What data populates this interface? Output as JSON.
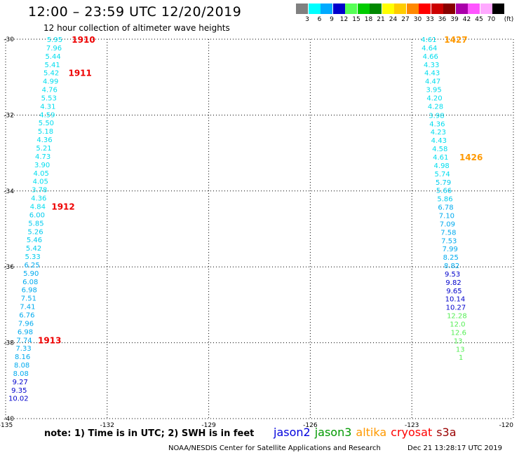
{
  "header": {
    "title": "12:00 – 23:59 UTC 12/20/2019",
    "subtitle": "12 hour collection of altimeter wave heights"
  },
  "legend": {
    "unit": "(ft)",
    "bins": [
      {
        "label": "3",
        "color": "#808080"
      },
      {
        "label": "6",
        "color": "#00ffff"
      },
      {
        "label": "9",
        "color": "#00aaff"
      },
      {
        "label": "12",
        "color": "#0000cc"
      },
      {
        "label": "15",
        "color": "#55ff55"
      },
      {
        "label": "18",
        "color": "#00cc00"
      },
      {
        "label": "21",
        "color": "#008800"
      },
      {
        "label": "24",
        "color": "#ffff00"
      },
      {
        "label": "27",
        "color": "#ffcc00"
      },
      {
        "label": "30",
        "color": "#ff8800"
      },
      {
        "label": "33",
        "color": "#ff0000"
      },
      {
        "label": "36",
        "color": "#cc0000"
      },
      {
        "label": "39",
        "color": "#880000"
      },
      {
        "label": "42",
        "color": "#aa00aa"
      },
      {
        "label": "45",
        "color": "#ff55ff"
      },
      {
        "label": "70",
        "color": "#ffaaff"
      },
      {
        "label": "",
        "color": "#000000"
      }
    ]
  },
  "map": {
    "lon_range": [
      -135,
      -120
    ],
    "lat_range": [
      -40,
      -30
    ],
    "lon_ticks": [
      -135,
      -132,
      -129,
      -126,
      -123,
      -120
    ],
    "lat_ticks": [
      -30,
      -32,
      -34,
      -36,
      -38,
      -40
    ],
    "lon_tick_labels": [
      "-135",
      "-132",
      "-129",
      "-126",
      "-123",
      "-120"
    ],
    "lat_tick_labels": [
      "-30",
      "-32",
      "-34",
      "-36",
      "-38",
      "-40"
    ],
    "grid": "dotted",
    "tracks": [
      {
        "color_scheme": "by-height",
        "points": [
          {
            "lon": -133.55,
            "lat": -30.0,
            "v": "5.95",
            "c": "#00ddee"
          },
          {
            "lon": -133.57,
            "lat": -30.22,
            "v": "7.96",
            "c": "#00ddee"
          },
          {
            "lon": -133.6,
            "lat": -30.44,
            "v": "5.44",
            "c": "#00ddee"
          },
          {
            "lon": -133.62,
            "lat": -30.66,
            "v": "5.41",
            "c": "#00ddee"
          },
          {
            "lon": -133.65,
            "lat": -30.88,
            "v": "5.42",
            "c": "#00ddee"
          },
          {
            "lon": -133.67,
            "lat": -31.1,
            "v": "4.99",
            "c": "#00ddee"
          },
          {
            "lon": -133.7,
            "lat": -31.32,
            "v": "4.76",
            "c": "#00ddee"
          },
          {
            "lon": -133.72,
            "lat": -31.54,
            "v": "5.53",
            "c": "#00ddee"
          },
          {
            "lon": -133.75,
            "lat": -31.76,
            "v": "4.31",
            "c": "#00ddee"
          },
          {
            "lon": -133.77,
            "lat": -31.98,
            "v": "4.59",
            "c": "#00ddee"
          },
          {
            "lon": -133.8,
            "lat": -32.2,
            "v": "5.50",
            "c": "#00ddee"
          },
          {
            "lon": -133.82,
            "lat": -32.42,
            "v": "5.18",
            "c": "#00ddee"
          },
          {
            "lon": -133.85,
            "lat": -32.64,
            "v": "4.36",
            "c": "#00ddee"
          },
          {
            "lon": -133.87,
            "lat": -32.86,
            "v": "5.21",
            "c": "#00ddee"
          },
          {
            "lon": -133.9,
            "lat": -33.08,
            "v": "4.73",
            "c": "#00ddee"
          },
          {
            "lon": -133.92,
            "lat": -33.3,
            "v": "3.90",
            "c": "#00ddee"
          },
          {
            "lon": -133.95,
            "lat": -33.52,
            "v": "4.05",
            "c": "#00ddee"
          },
          {
            "lon": -133.97,
            "lat": -33.74,
            "v": "4.05",
            "c": "#00ddee"
          },
          {
            "lon": -134.0,
            "lat": -33.96,
            "v": "3.78",
            "c": "#00ddee"
          },
          {
            "lon": -134.02,
            "lat": -34.18,
            "v": "4.36",
            "c": "#00ddee"
          },
          {
            "lon": -134.05,
            "lat": -34.4,
            "v": "4.84",
            "c": "#00ddee"
          },
          {
            "lon": -134.07,
            "lat": -34.62,
            "v": "6.00",
            "c": "#00ccee"
          },
          {
            "lon": -134.1,
            "lat": -34.84,
            "v": "5.85",
            "c": "#00ccee"
          },
          {
            "lon": -134.12,
            "lat": -35.06,
            "v": "5.26",
            "c": "#00ccee"
          },
          {
            "lon": -134.15,
            "lat": -35.28,
            "v": "5.46",
            "c": "#00ccee"
          },
          {
            "lon": -134.17,
            "lat": -35.5,
            "v": "5.42",
            "c": "#00ccee"
          },
          {
            "lon": -134.2,
            "lat": -35.72,
            "v": "5.33",
            "c": "#00ccee"
          },
          {
            "lon": -134.22,
            "lat": -35.94,
            "v": "6.25",
            "c": "#00aaee"
          },
          {
            "lon": -134.25,
            "lat": -36.16,
            "v": "5.90",
            "c": "#00aaee"
          },
          {
            "lon": -134.27,
            "lat": -36.38,
            "v": "6.08",
            "c": "#00aaee"
          },
          {
            "lon": -134.3,
            "lat": -36.6,
            "v": "6.98",
            "c": "#00aaee"
          },
          {
            "lon": -134.32,
            "lat": -36.82,
            "v": "7.51",
            "c": "#00aaee"
          },
          {
            "lon": -134.35,
            "lat": -37.04,
            "v": "7.41",
            "c": "#00aaee"
          },
          {
            "lon": -134.37,
            "lat": -37.26,
            "v": "6.76",
            "c": "#00aaee"
          },
          {
            "lon": -134.4,
            "lat": -37.48,
            "v": "7.96",
            "c": "#00aaee"
          },
          {
            "lon": -134.42,
            "lat": -37.7,
            "v": "6.98",
            "c": "#00aaee"
          },
          {
            "lon": -134.45,
            "lat": -37.92,
            "v": "7.74",
            "c": "#00aaee"
          },
          {
            "lon": -134.47,
            "lat": -38.14,
            "v": "7.33",
            "c": "#00aaee"
          },
          {
            "lon": -134.5,
            "lat": -38.36,
            "v": "8.16",
            "c": "#00aaee"
          },
          {
            "lon": -134.52,
            "lat": -38.58,
            "v": "8.08",
            "c": "#00aaee"
          },
          {
            "lon": -134.55,
            "lat": -38.8,
            "v": "8.08",
            "c": "#00aaee"
          },
          {
            "lon": -134.57,
            "lat": -39.02,
            "v": "9.27",
            "c": "#0000cc"
          },
          {
            "lon": -134.6,
            "lat": -39.24,
            "v": "9.35",
            "c": "#0000cc"
          },
          {
            "lon": -134.62,
            "lat": -39.46,
            "v": "10.02",
            "c": "#0000cc"
          }
        ]
      },
      {
        "color_scheme": "by-height",
        "points": [
          {
            "lon": -122.5,
            "lat": -30.0,
            "v": "4.61",
            "c": "#00ddee"
          },
          {
            "lon": -122.48,
            "lat": -30.22,
            "v": "4.64",
            "c": "#00ddee"
          },
          {
            "lon": -122.45,
            "lat": -30.44,
            "v": "4.66",
            "c": "#00ddee"
          },
          {
            "lon": -122.42,
            "lat": -30.66,
            "v": "4.33",
            "c": "#00ddee"
          },
          {
            "lon": -122.4,
            "lat": -30.88,
            "v": "4.43",
            "c": "#00ddee"
          },
          {
            "lon": -122.38,
            "lat": -31.1,
            "v": "4.47",
            "c": "#00ddee"
          },
          {
            "lon": -122.35,
            "lat": -31.32,
            "v": "3.95",
            "c": "#00ddee"
          },
          {
            "lon": -122.33,
            "lat": -31.54,
            "v": "4.20",
            "c": "#00ddee"
          },
          {
            "lon": -122.3,
            "lat": -31.76,
            "v": "4.28",
            "c": "#00ddee"
          },
          {
            "lon": -122.27,
            "lat": -32.0,
            "v": "3.98",
            "c": "#00ddee"
          },
          {
            "lon": -122.25,
            "lat": -32.22,
            "v": "4.36",
            "c": "#00ddee"
          },
          {
            "lon": -122.22,
            "lat": -32.44,
            "v": "4.23",
            "c": "#00ddee"
          },
          {
            "lon": -122.2,
            "lat": -32.66,
            "v": "4.43",
            "c": "#00ddee"
          },
          {
            "lon": -122.17,
            "lat": -32.88,
            "v": "4.58",
            "c": "#00ddee"
          },
          {
            "lon": -122.15,
            "lat": -33.1,
            "v": "4.61",
            "c": "#00ddee"
          },
          {
            "lon": -122.12,
            "lat": -33.32,
            "v": "4.98",
            "c": "#00ddee"
          },
          {
            "lon": -122.1,
            "lat": -33.54,
            "v": "5.74",
            "c": "#00ddee"
          },
          {
            "lon": -122.07,
            "lat": -33.76,
            "v": "5.79",
            "c": "#00ccee"
          },
          {
            "lon": -122.05,
            "lat": -33.98,
            "v": "5.66",
            "c": "#00ccee"
          },
          {
            "lon": -122.02,
            "lat": -34.2,
            "v": "5.86",
            "c": "#00ccee"
          },
          {
            "lon": -122.0,
            "lat": -34.42,
            "v": "6.78",
            "c": "#00aaee"
          },
          {
            "lon": -121.97,
            "lat": -34.64,
            "v": "7.10",
            "c": "#00aaee"
          },
          {
            "lon": -121.95,
            "lat": -34.86,
            "v": "7.09",
            "c": "#00aaee"
          },
          {
            "lon": -121.92,
            "lat": -35.08,
            "v": "7.58",
            "c": "#00aaee"
          },
          {
            "lon": -121.9,
            "lat": -35.3,
            "v": "7.53",
            "c": "#00aaee"
          },
          {
            "lon": -121.87,
            "lat": -35.52,
            "v": "7.99",
            "c": "#00aaee"
          },
          {
            "lon": -121.85,
            "lat": -35.74,
            "v": "8.25",
            "c": "#00aaee"
          },
          {
            "lon": -121.82,
            "lat": -35.96,
            "v": "8.82",
            "c": "#00aaee"
          },
          {
            "lon": -121.8,
            "lat": -36.18,
            "v": "9.53",
            "c": "#0000cc"
          },
          {
            "lon": -121.77,
            "lat": -36.4,
            "v": "9.82",
            "c": "#0000cc"
          },
          {
            "lon": -121.75,
            "lat": -36.62,
            "v": "9.65",
            "c": "#0000cc"
          },
          {
            "lon": -121.72,
            "lat": -36.84,
            "v": "10.14",
            "c": "#0000cc"
          },
          {
            "lon": -121.7,
            "lat": -37.06,
            "v": "10.27",
            "c": "#0000cc"
          },
          {
            "lon": -121.67,
            "lat": -37.28,
            "v": "12.28",
            "c": "#55ee55"
          },
          {
            "lon": -121.65,
            "lat": -37.5,
            "v": "12.0",
            "c": "#55ee55"
          },
          {
            "lon": -121.62,
            "lat": -37.72,
            "v": "12.6",
            "c": "#55ee55"
          },
          {
            "lon": -121.6,
            "lat": -37.94,
            "v": "13.",
            "c": "#55ee55"
          },
          {
            "lon": -121.57,
            "lat": -38.16,
            "v": "13",
            "c": "#55ee55"
          },
          {
            "lon": -121.55,
            "lat": -38.38,
            "v": "1",
            "c": "#55ee55"
          }
        ]
      }
    ],
    "pass_labels": [
      {
        "text": "1910",
        "lon": -132.7,
        "lat": -30.0,
        "color": "#ee0000"
      },
      {
        "text": "1911",
        "lon": -132.8,
        "lat": -30.88,
        "color": "#ee0000"
      },
      {
        "text": "1912",
        "lon": -133.3,
        "lat": -34.4,
        "color": "#ee0000"
      },
      {
        "text": "1913",
        "lon": -133.7,
        "lat": -37.92,
        "color": "#ee0000"
      },
      {
        "text": "1427",
        "lon": -121.7,
        "lat": -30.0,
        "color": "#ff9900"
      },
      {
        "text": "1426",
        "lon": -121.25,
        "lat": -33.1,
        "color": "#ff9900"
      }
    ]
  },
  "footer": {
    "note": "note: 1) Time is in UTC; 2) SWH is in feet",
    "satellites": [
      {
        "name": "jason2",
        "color": "#0000dd"
      },
      {
        "name": "jason3",
        "color": "#009900"
      },
      {
        "name": "altika",
        "color": "#ff9900"
      },
      {
        "name": "cryosat",
        "color": "#ff0000"
      },
      {
        "name": "s3a",
        "color": "#990000"
      }
    ],
    "credit": "NOAA/NESDIS Center for Satellite Applications and Research",
    "timestamp": "Dec 21 13:28:17 UTC 2019"
  }
}
